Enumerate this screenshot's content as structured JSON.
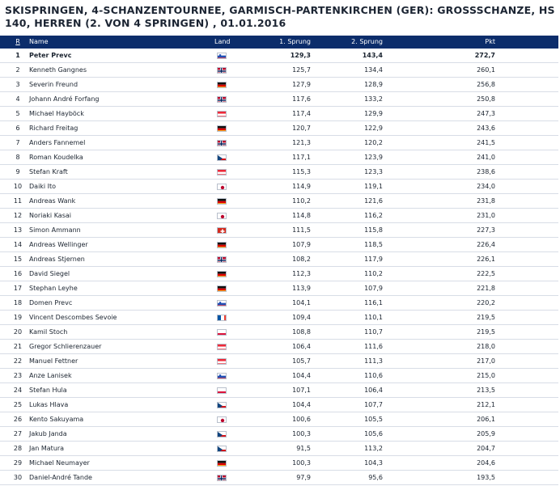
{
  "title": "SKISPRINGEN, 4-SCHANZENTOURNEE, GARMISCH-PARTENKIRCHEN (GER): GROSSSCHANZE, HS 140, HERREN (2. VON 4 SPRINGEN) , 01.01.2016",
  "header": {
    "rank": "R",
    "name": "Name",
    "land": "Land",
    "jump1": "1. Sprung",
    "jump2": "2. Sprung",
    "points": "Pkt"
  },
  "colors": {
    "header_bg": "#0c2d6b",
    "row_divider": "#d8dde6"
  },
  "rows": [
    {
      "rank": "1",
      "name": "Peter Prevc",
      "flag": "SLO",
      "j1": "129,3",
      "j2": "143,4",
      "pkt": "272,7"
    },
    {
      "rank": "2",
      "name": "Kenneth Gangnes",
      "flag": "NOR",
      "j1": "125,7",
      "j2": "134,4",
      "pkt": "260,1"
    },
    {
      "rank": "3",
      "name": "Severin Freund",
      "flag": "GER",
      "j1": "127,9",
      "j2": "128,9",
      "pkt": "256,8"
    },
    {
      "rank": "4",
      "name": "Johann André Forfang",
      "flag": "NOR",
      "j1": "117,6",
      "j2": "133,2",
      "pkt": "250,8"
    },
    {
      "rank": "5",
      "name": "Michael Hayböck",
      "flag": "AUT",
      "j1": "117,4",
      "j2": "129,9",
      "pkt": "247,3"
    },
    {
      "rank": "6",
      "name": "Richard Freitag",
      "flag": "GER",
      "j1": "120,7",
      "j2": "122,9",
      "pkt": "243,6"
    },
    {
      "rank": "7",
      "name": "Anders Fannemel",
      "flag": "NOR",
      "j1": "121,3",
      "j2": "120,2",
      "pkt": "241,5"
    },
    {
      "rank": "8",
      "name": "Roman Koudelka",
      "flag": "CZE",
      "j1": "117,1",
      "j2": "123,9",
      "pkt": "241,0"
    },
    {
      "rank": "9",
      "name": "Stefan Kraft",
      "flag": "AUT",
      "j1": "115,3",
      "j2": "123,3",
      "pkt": "238,6"
    },
    {
      "rank": "10",
      "name": "Daiki Ito",
      "flag": "JPN",
      "j1": "114,9",
      "j2": "119,1",
      "pkt": "234,0"
    },
    {
      "rank": "11",
      "name": "Andreas Wank",
      "flag": "GER",
      "j1": "110,2",
      "j2": "121,6",
      "pkt": "231,8"
    },
    {
      "rank": "12",
      "name": "Noriaki Kasai",
      "flag": "JPN",
      "j1": "114,8",
      "j2": "116,2",
      "pkt": "231,0"
    },
    {
      "rank": "13",
      "name": "Simon Ammann",
      "flag": "SUI",
      "j1": "111,5",
      "j2": "115,8",
      "pkt": "227,3"
    },
    {
      "rank": "14",
      "name": "Andreas Wellinger",
      "flag": "GER",
      "j1": "107,9",
      "j2": "118,5",
      "pkt": "226,4"
    },
    {
      "rank": "15",
      "name": "Andreas Stjernen",
      "flag": "NOR",
      "j1": "108,2",
      "j2": "117,9",
      "pkt": "226,1"
    },
    {
      "rank": "16",
      "name": "David Siegel",
      "flag": "GER",
      "j1": "112,3",
      "j2": "110,2",
      "pkt": "222,5"
    },
    {
      "rank": "17",
      "name": "Stephan Leyhe",
      "flag": "GER",
      "j1": "113,9",
      "j2": "107,9",
      "pkt": "221,8"
    },
    {
      "rank": "18",
      "name": "Domen Prevc",
      "flag": "SLO",
      "j1": "104,1",
      "j2": "116,1",
      "pkt": "220,2"
    },
    {
      "rank": "19",
      "name": "Vincent Descombes Sevoie",
      "flag": "FRA",
      "j1": "109,4",
      "j2": "110,1",
      "pkt": "219,5"
    },
    {
      "rank": "20",
      "name": "Kamil Stoch",
      "flag": "POL",
      "j1": "108,8",
      "j2": "110,7",
      "pkt": "219,5"
    },
    {
      "rank": "21",
      "name": "Gregor Schlierenzauer",
      "flag": "AUT",
      "j1": "106,4",
      "j2": "111,6",
      "pkt": "218,0"
    },
    {
      "rank": "22",
      "name": "Manuel Fettner",
      "flag": "AUT",
      "j1": "105,7",
      "j2": "111,3",
      "pkt": "217,0"
    },
    {
      "rank": "23",
      "name": "Anze Lanisek",
      "flag": "SLO",
      "j1": "104,4",
      "j2": "110,6",
      "pkt": "215,0"
    },
    {
      "rank": "24",
      "name": "Stefan Hula",
      "flag": "POL",
      "j1": "107,1",
      "j2": "106,4",
      "pkt": "213,5"
    },
    {
      "rank": "25",
      "name": "Lukas Hlava",
      "flag": "CZE",
      "j1": "104,4",
      "j2": "107,7",
      "pkt": "212,1"
    },
    {
      "rank": "26",
      "name": "Kento Sakuyama",
      "flag": "JPN",
      "j1": "100,6",
      "j2": "105,5",
      "pkt": "206,1"
    },
    {
      "rank": "27",
      "name": "Jakub Janda",
      "flag": "CZE",
      "j1": "100,3",
      "j2": "105,6",
      "pkt": "205,9"
    },
    {
      "rank": "28",
      "name": "Jan Matura",
      "flag": "CZE",
      "j1": "91,5",
      "j2": "113,2",
      "pkt": "204,7"
    },
    {
      "rank": "29",
      "name": "Michael Neumayer",
      "flag": "GER",
      "j1": "100,3",
      "j2": "104,3",
      "pkt": "204,6"
    },
    {
      "rank": "30",
      "name": "Daniel-André Tande",
      "flag": "NOR",
      "j1": "97,9",
      "j2": "95,6",
      "pkt": "193,5"
    }
  ]
}
